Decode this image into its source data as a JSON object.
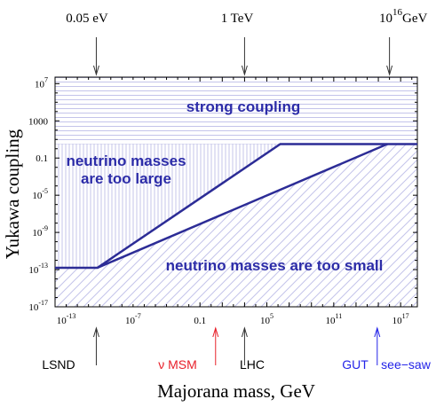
{
  "chart_data": {
    "type": "area",
    "title": "",
    "xlabel": "Majorana mass, GeV",
    "ylabel": "Yukawa coupling",
    "x_scale": "log",
    "y_scale": "log",
    "xlim_exp": [
      -14,
      18.5
    ],
    "ylim_exp": [
      -17,
      7.7
    ],
    "x_ticks": [
      {
        "base": "10",
        "exp": "-13",
        "value_exp": -13
      },
      {
        "base": "10",
        "exp": "-7",
        "value_exp": -7
      },
      {
        "base": "0.1",
        "exp": "",
        "value_exp": -1
      },
      {
        "base": "10",
        "exp": "5",
        "value_exp": 5
      },
      {
        "base": "10",
        "exp": "11",
        "value_exp": 11
      },
      {
        "base": "10",
        "exp": "17",
        "value_exp": 17
      }
    ],
    "y_ticks": [
      {
        "base": "10",
        "exp": "7",
        "value_exp": 7
      },
      {
        "base": "1000",
        "exp": "",
        "value_exp": 3
      },
      {
        "base": "0.1",
        "exp": "",
        "value_exp": -1
      },
      {
        "base": "10",
        "exp": "-5",
        "value_exp": -5
      },
      {
        "base": "10",
        "exp": "-9",
        "value_exp": -9
      },
      {
        "base": "10",
        "exp": "-13",
        "value_exp": -13
      },
      {
        "base": "10",
        "exp": "-17",
        "value_exp": -17
      }
    ],
    "series": [
      {
        "points_exp": [
          [
            -14,
            -12.8
          ],
          [
            -10.2,
            -12.8
          ],
          [
            6.2,
            0.5
          ],
          [
            18.5,
            0.5
          ]
        ]
      },
      {
        "points_exp": [
          [
            -10.2,
            -12.8
          ],
          [
            15.8,
            0.5
          ]
        ]
      }
    ],
    "regions": [
      {
        "label": "strong coupling"
      },
      {
        "label_lines": [
          "neutrino masses",
          "are too large"
        ]
      },
      {
        "label": "neutrino masses are too small"
      }
    ],
    "top_markers": [
      {
        "label": "0.05 eV",
        "x_exp": -10.3
      },
      {
        "label": "1 TeV",
        "x_exp": 3
      },
      {
        "label_base": "10",
        "label_exp": "16",
        "label_unit": "GeV",
        "x_exp": 16
      }
    ],
    "bottom_markers": [
      {
        "label": "LSND",
        "x_exp": -10.3,
        "color": "#000000"
      },
      {
        "label": "ν MSM",
        "x_exp": 0.4,
        "color": "#e8202a"
      },
      {
        "label": "LHC",
        "x_exp": 3,
        "color": "#000000"
      },
      {
        "label": "GUT",
        "x_exp": 14.9,
        "color": "#2323e8"
      },
      {
        "label": "see−saw",
        "x_exp": null,
        "color": "#2323e8"
      }
    ],
    "colors": {
      "line": "#2c2c96",
      "region_text": "#2c2ca8",
      "hatch": "#c4c4ea",
      "nu_msm": "#e8202a",
      "gut": "#2323e8"
    }
  }
}
